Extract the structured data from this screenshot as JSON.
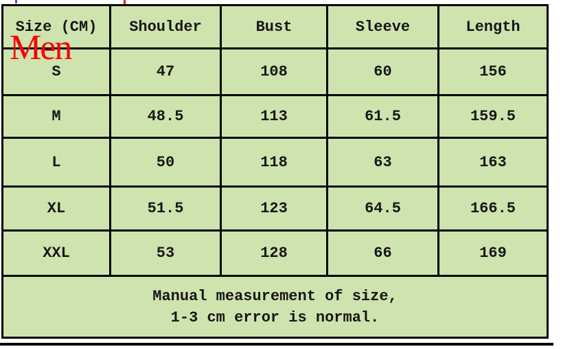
{
  "overlay": {
    "gender_label": "Men"
  },
  "table": {
    "headers": [
      "Size (CM)",
      "Shoulder",
      "Bust",
      "Sleeve",
      "Length"
    ],
    "rows": [
      {
        "cells": [
          "S",
          "47",
          "108",
          "60",
          "156"
        ]
      },
      {
        "cells": [
          "M",
          "48.5",
          "113",
          "61.5",
          "159.5"
        ]
      },
      {
        "cells": [
          "L",
          "50",
          "118",
          "63",
          "163"
        ]
      },
      {
        "cells": [
          "XL",
          "51.5",
          "123",
          "64.5",
          "166.5"
        ]
      },
      {
        "cells": [
          "XXL",
          "53",
          "128",
          "66",
          "169"
        ]
      }
    ],
    "note_line1": "Manual measurement of size,",
    "note_line2": "1-3 cm error is normal."
  },
  "chart_data": {
    "type": "table",
    "title": "Men",
    "unit": "CM",
    "columns": [
      "Size (CM)",
      "Shoulder",
      "Bust",
      "Sleeve",
      "Length"
    ],
    "rows": [
      {
        "size": "S",
        "shoulder": 47,
        "bust": 108,
        "sleeve": 60,
        "length": 156
      },
      {
        "size": "M",
        "shoulder": 48.5,
        "bust": 113,
        "sleeve": 61.5,
        "length": 159.5
      },
      {
        "size": "L",
        "shoulder": 50,
        "bust": 118,
        "sleeve": 63,
        "length": 163
      },
      {
        "size": "XL",
        "shoulder": 51.5,
        "bust": 123,
        "sleeve": 64.5,
        "length": 166.5
      },
      {
        "size": "XXL",
        "shoulder": 53,
        "bust": 128,
        "sleeve": 66,
        "length": 169
      }
    ],
    "footnote": "Manual measurement of size, 1-3 cm error is normal."
  },
  "colors": {
    "cell_bg": "#cfe3ae",
    "border": "#000000",
    "text": "#161616",
    "men_red": "#f40505",
    "tick_purple": "#8040c0",
    "tick_red": "#e02020"
  }
}
